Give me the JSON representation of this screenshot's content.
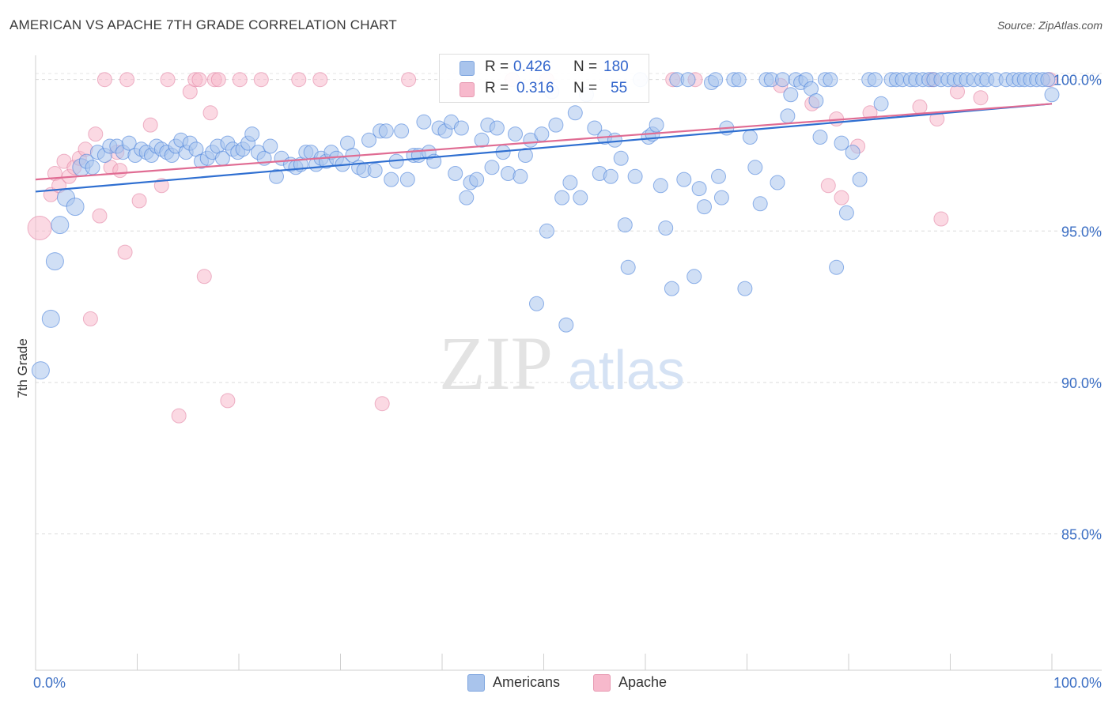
{
  "header": {
    "title": "AMERICAN VS APACHE 7TH GRADE CORRELATION CHART",
    "source": "Source: ZipAtlas.com"
  },
  "watermark": {
    "zip": "ZIP",
    "atlas": "atlas"
  },
  "stats": [
    {
      "r_label": "R =",
      "r_value": "0.426",
      "n_label": "N =",
      "n_value": "180",
      "color": "#a9c4ec"
    },
    {
      "r_label": "R =",
      "r_value": "0.316",
      "n_label": "N =",
      "n_value": "55",
      "color": "#f7b9cc"
    }
  ],
  "chart_data": {
    "type": "scatter",
    "title": "AMERICAN VS APACHE 7TH GRADE CORRELATION CHART",
    "xlabel": "",
    "ylabel": "7th Grade",
    "xlim": [
      0,
      100
    ],
    "ylim": [
      80.5,
      100.8
    ],
    "x_tick_labels": [
      "0.0%",
      "100.0%"
    ],
    "y_ticks": [
      85,
      90,
      95,
      100
    ],
    "y_tick_labels": [
      "85.0%",
      "90.0%",
      "95.0%",
      "100.0%"
    ],
    "grid": true,
    "legend_position": "bottom-center",
    "series": [
      {
        "name": "Americans",
        "color": "#3c78d8",
        "fill": "#a9c4ec",
        "trend": {
          "x": [
            0,
            100
          ],
          "y": [
            96.3,
            99.2
          ]
        },
        "points": [
          [
            0.5,
            90.4
          ],
          [
            1.5,
            92.1
          ],
          [
            1.9,
            94.0
          ],
          [
            2.4,
            95.2
          ],
          [
            3.0,
            96.1
          ],
          [
            3.9,
            95.8
          ],
          [
            4.5,
            97.1
          ],
          [
            5.0,
            97.3
          ],
          [
            5.6,
            97.1
          ],
          [
            6.1,
            97.6
          ],
          [
            6.8,
            97.5
          ],
          [
            7.3,
            97.8
          ],
          [
            8.0,
            97.8
          ],
          [
            8.6,
            97.6
          ],
          [
            9.2,
            97.9
          ],
          [
            9.8,
            97.5
          ],
          [
            10.4,
            97.7
          ],
          [
            10.9,
            97.6
          ],
          [
            11.4,
            97.5
          ],
          [
            11.9,
            97.8
          ],
          [
            12.4,
            97.7
          ],
          [
            12.9,
            97.6
          ],
          [
            13.4,
            97.5
          ],
          [
            13.8,
            97.8
          ],
          [
            14.3,
            98.0
          ],
          [
            14.8,
            97.6
          ],
          [
            15.2,
            97.9
          ],
          [
            15.8,
            97.7
          ],
          [
            16.3,
            97.3
          ],
          [
            16.9,
            97.4
          ],
          [
            17.4,
            97.6
          ],
          [
            17.9,
            97.8
          ],
          [
            18.4,
            97.4
          ],
          [
            18.9,
            97.9
          ],
          [
            19.4,
            97.7
          ],
          [
            19.9,
            97.6
          ],
          [
            20.4,
            97.7
          ],
          [
            20.9,
            97.9
          ],
          [
            21.3,
            98.2
          ],
          [
            21.9,
            97.6
          ],
          [
            22.5,
            97.4
          ],
          [
            23.1,
            97.8
          ],
          [
            23.7,
            96.8
          ],
          [
            24.2,
            97.4
          ],
          [
            25.1,
            97.2
          ],
          [
            25.6,
            97.1
          ],
          [
            26.1,
            97.2
          ],
          [
            26.6,
            97.6
          ],
          [
            27.1,
            97.6
          ],
          [
            27.6,
            97.2
          ],
          [
            28.1,
            97.4
          ],
          [
            28.6,
            97.3
          ],
          [
            29.1,
            97.6
          ],
          [
            29.6,
            97.4
          ],
          [
            30.2,
            97.2
          ],
          [
            30.7,
            97.9
          ],
          [
            31.2,
            97.5
          ],
          [
            31.8,
            97.1
          ],
          [
            32.3,
            97.0
          ],
          [
            32.8,
            98.0
          ],
          [
            33.4,
            97.0
          ],
          [
            33.9,
            98.3
          ],
          [
            34.5,
            98.3
          ],
          [
            35.0,
            96.7
          ],
          [
            35.5,
            97.3
          ],
          [
            36.0,
            98.3
          ],
          [
            36.6,
            96.7
          ],
          [
            37.2,
            97.5
          ],
          [
            37.7,
            97.5
          ],
          [
            38.2,
            98.6
          ],
          [
            38.7,
            97.6
          ],
          [
            39.2,
            97.3
          ],
          [
            39.7,
            98.4
          ],
          [
            40.3,
            98.3
          ],
          [
            40.9,
            98.6
          ],
          [
            41.3,
            96.9
          ],
          [
            41.9,
            98.4
          ],
          [
            42.4,
            96.1
          ],
          [
            42.8,
            96.6
          ],
          [
            43.4,
            96.7
          ],
          [
            43.9,
            98.0
          ],
          [
            44.5,
            98.5
          ],
          [
            44.9,
            97.1
          ],
          [
            45.4,
            98.4
          ],
          [
            46.0,
            97.6
          ],
          [
            46.5,
            96.9
          ],
          [
            47.2,
            98.2
          ],
          [
            47.7,
            96.8
          ],
          [
            48.2,
            97.5
          ],
          [
            48.7,
            98.0
          ],
          [
            49.3,
            92.6
          ],
          [
            49.8,
            98.2
          ],
          [
            50.3,
            95.0
          ],
          [
            50.8,
            99.6
          ],
          [
            51.2,
            98.5
          ],
          [
            51.8,
            96.1
          ],
          [
            52.2,
            91.9
          ],
          [
            52.6,
            96.6
          ],
          [
            53.1,
            98.9
          ],
          [
            53.6,
            96.1
          ],
          [
            54.2,
            99.5
          ],
          [
            55.0,
            98.4
          ],
          [
            55.5,
            96.9
          ],
          [
            56.0,
            98.1
          ],
          [
            56.6,
            96.8
          ],
          [
            57.0,
            98.0
          ],
          [
            57.6,
            97.4
          ],
          [
            58.0,
            95.2
          ],
          [
            58.3,
            93.8
          ],
          [
            59.0,
            96.8
          ],
          [
            59.5,
            100.0
          ],
          [
            60.3,
            98.1
          ],
          [
            60.7,
            98.2
          ],
          [
            61.1,
            98.5
          ],
          [
            61.5,
            96.5
          ],
          [
            62.0,
            95.1
          ],
          [
            62.6,
            93.1
          ],
          [
            63.1,
            100.0
          ],
          [
            63.8,
            96.7
          ],
          [
            64.2,
            100.0
          ],
          [
            64.8,
            93.5
          ],
          [
            65.3,
            96.4
          ],
          [
            65.8,
            95.8
          ],
          [
            66.5,
            99.9
          ],
          [
            66.9,
            100.0
          ],
          [
            67.2,
            96.8
          ],
          [
            67.5,
            96.1
          ],
          [
            68.0,
            98.4
          ],
          [
            68.7,
            100.0
          ],
          [
            69.2,
            100.0
          ],
          [
            69.8,
            93.1
          ],
          [
            70.3,
            98.1
          ],
          [
            70.8,
            97.1
          ],
          [
            71.3,
            95.9
          ],
          [
            71.9,
            100.0
          ],
          [
            72.4,
            100.0
          ],
          [
            73.0,
            96.6
          ],
          [
            73.5,
            100.0
          ],
          [
            74.0,
            98.8
          ],
          [
            74.3,
            99.5
          ],
          [
            74.8,
            100.0
          ],
          [
            75.3,
            99.9
          ],
          [
            75.8,
            100.0
          ],
          [
            76.3,
            99.7
          ],
          [
            76.8,
            99.3
          ],
          [
            77.2,
            98.1
          ],
          [
            77.7,
            100.0
          ],
          [
            78.2,
            100.0
          ],
          [
            78.8,
            93.8
          ],
          [
            79.3,
            97.9
          ],
          [
            79.8,
            95.6
          ],
          [
            80.4,
            97.6
          ],
          [
            81.1,
            96.7
          ],
          [
            82.0,
            100.0
          ],
          [
            82.6,
            100.0
          ],
          [
            83.2,
            99.2
          ],
          [
            84.2,
            100.0
          ],
          [
            84.7,
            100.0
          ],
          [
            85.3,
            100.0
          ],
          [
            86.1,
            100.0
          ],
          [
            86.6,
            100.0
          ],
          [
            87.3,
            100.0
          ],
          [
            87.9,
            100.0
          ],
          [
            88.4,
            100.0
          ],
          [
            89.1,
            100.0
          ],
          [
            89.8,
            100.0
          ],
          [
            90.4,
            100.0
          ],
          [
            91.0,
            100.0
          ],
          [
            91.6,
            100.0
          ],
          [
            92.3,
            100.0
          ],
          [
            93.1,
            100.0
          ],
          [
            93.6,
            100.0
          ],
          [
            94.5,
            100.0
          ],
          [
            95.5,
            100.0
          ],
          [
            96.2,
            100.0
          ],
          [
            96.8,
            100.0
          ],
          [
            97.3,
            100.0
          ],
          [
            97.9,
            100.0
          ],
          [
            98.5,
            100.0
          ],
          [
            99.1,
            100.0
          ],
          [
            99.6,
            100.0
          ],
          [
            100.0,
            99.5
          ]
        ]
      },
      {
        "name": "Apache",
        "color": "#e07b9e",
        "fill": "#f7b9cc",
        "trend": {
          "x": [
            0,
            100
          ],
          "y": [
            96.7,
            99.2
          ]
        },
        "points": [
          [
            0.4,
            95.1
          ],
          [
            1.5,
            96.2
          ],
          [
            1.9,
            96.9
          ],
          [
            2.3,
            96.5
          ],
          [
            2.8,
            97.3
          ],
          [
            3.3,
            96.8
          ],
          [
            3.8,
            97.1
          ],
          [
            4.3,
            97.4
          ],
          [
            4.9,
            97.7
          ],
          [
            5.4,
            92.1
          ],
          [
            5.9,
            98.2
          ],
          [
            6.3,
            95.5
          ],
          [
            6.8,
            100.0
          ],
          [
            7.4,
            97.1
          ],
          [
            8.0,
            97.6
          ],
          [
            8.3,
            97.0
          ],
          [
            8.8,
            94.3
          ],
          [
            9.0,
            100.0
          ],
          [
            10.2,
            96.0
          ],
          [
            11.3,
            98.5
          ],
          [
            12.4,
            96.5
          ],
          [
            13.0,
            100.0
          ],
          [
            14.1,
            88.9
          ],
          [
            15.2,
            99.6
          ],
          [
            15.7,
            100.0
          ],
          [
            16.1,
            100.0
          ],
          [
            16.6,
            93.5
          ],
          [
            17.2,
            98.9
          ],
          [
            17.6,
            100.0
          ],
          [
            18.0,
            100.0
          ],
          [
            18.9,
            89.4
          ],
          [
            20.1,
            100.0
          ],
          [
            22.2,
            100.0
          ],
          [
            25.9,
            100.0
          ],
          [
            28.0,
            100.0
          ],
          [
            34.1,
            89.3
          ],
          [
            36.7,
            100.0
          ],
          [
            46.9,
            100.0
          ],
          [
            50.3,
            100.0
          ],
          [
            62.7,
            100.0
          ],
          [
            64.9,
            100.0
          ],
          [
            73.3,
            99.8
          ],
          [
            76.4,
            99.2
          ],
          [
            78.0,
            96.5
          ],
          [
            78.8,
            98.7
          ],
          [
            79.3,
            96.1
          ],
          [
            80.9,
            97.8
          ],
          [
            82.1,
            98.9
          ],
          [
            87.0,
            99.1
          ],
          [
            88.2,
            100.0
          ],
          [
            88.7,
            98.7
          ],
          [
            89.1,
            95.4
          ],
          [
            90.7,
            99.6
          ],
          [
            93.0,
            99.4
          ],
          [
            99.8,
            100.0
          ]
        ]
      }
    ]
  },
  "bottom_legend": [
    {
      "label": "Americans",
      "color": "#a9c4ec",
      "stroke": "#7fa6df"
    },
    {
      "label": "Apache",
      "color": "#f7b9cc",
      "stroke": "#e79ab2"
    }
  ]
}
